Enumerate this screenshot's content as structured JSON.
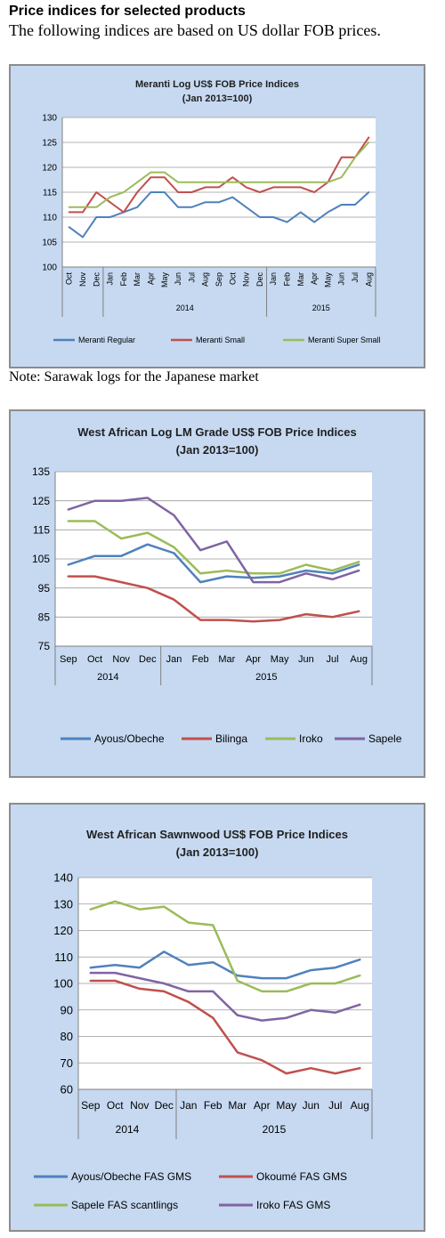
{
  "page": {
    "heading": "Price indices for selected products",
    "subheading": "The following indices are based on US dollar FOB prices.",
    "note": "Note: Sarawak logs for the Japanese market"
  },
  "chart_data": [
    {
      "type": "line",
      "title": "Meranti Log US$ FOB Price Indices",
      "subtitle": "(Jan 2013=100)",
      "categories": [
        "Oct",
        "Nov",
        "Dec",
        "Jan",
        "Feb",
        "Mar",
        "Apr",
        "May",
        "Jun",
        "Jul",
        "Aug",
        "Sep",
        "Oct",
        "Nov",
        "Dec",
        "Jan",
        "Feb",
        "Mar",
        "Apr",
        "May",
        "Jun",
        "Jul",
        "Aug"
      ],
      "year_groups": [
        {
          "label": "",
          "count": 3
        },
        {
          "label": "2014",
          "count": 12
        },
        {
          "label": "2015",
          "count": 8
        }
      ],
      "ylim": [
        100,
        130
      ],
      "yticks": [
        100,
        105,
        110,
        115,
        120,
        125,
        130
      ],
      "grid": true,
      "legend": "bottom",
      "series": [
        {
          "name": "Meranti Regular",
          "color": "#4f81bd",
          "values": [
            108,
            106,
            110,
            110,
            111,
            112,
            115,
            115,
            112,
            112,
            113,
            113,
            114,
            112,
            110,
            110,
            109,
            111,
            109,
            111,
            112.5,
            112.5,
            115
          ]
        },
        {
          "name": "Meranti Small",
          "color": "#c0504d",
          "values": [
            111,
            111,
            115,
            113,
            111,
            115,
            118,
            118,
            115,
            115,
            116,
            116,
            118,
            116,
            115,
            116,
            116,
            116,
            115,
            117,
            122,
            122,
            126
          ]
        },
        {
          "name": "Meranti Super Small",
          "color": "#9bbb59",
          "values": [
            112,
            112,
            112,
            114,
            115,
            117,
            119,
            119,
            117,
            117,
            117,
            117,
            117,
            117,
            117,
            117,
            117,
            117,
            117,
            117,
            118,
            122,
            125
          ]
        }
      ]
    },
    {
      "type": "line",
      "title": "West African Log LM Grade US$ FOB Price Indices",
      "subtitle": "(Jan 2013=100)",
      "categories": [
        "Sep",
        "Oct",
        "Nov",
        "Dec",
        "Jan",
        "Feb",
        "Mar",
        "Apr",
        "May",
        "Jun",
        "Jul",
        "Aug"
      ],
      "year_groups": [
        {
          "label": "2014",
          "count": 4
        },
        {
          "label": "2015",
          "count": 8
        }
      ],
      "ylim": [
        75,
        135
      ],
      "yticks": [
        75,
        85,
        95,
        105,
        115,
        125,
        135
      ],
      "grid": true,
      "legend": "bottom",
      "series": [
        {
          "name": "Ayous/Obeche",
          "color": "#4f81bd",
          "values": [
            103,
            106,
            106,
            110,
            107,
            97,
            99,
            98.5,
            99,
            101,
            100,
            103
          ]
        },
        {
          "name": "Bilinga",
          "color": "#c0504d",
          "values": [
            99,
            99,
            97,
            95,
            91,
            84,
            84,
            83.5,
            84,
            86,
            85,
            87
          ]
        },
        {
          "name": "Iroko",
          "color": "#9bbb59",
          "values": [
            118,
            118,
            112,
            114,
            109,
            100,
            101,
            100,
            100,
            103,
            101,
            104
          ]
        },
        {
          "name": "Sapele",
          "color": "#8064a2",
          "values": [
            122,
            125,
            125,
            126,
            120,
            108,
            111,
            97,
            97,
            100,
            98,
            101
          ]
        }
      ]
    },
    {
      "type": "line",
      "title": "West African Sawnwood US$ FOB Price Indices",
      "subtitle": "(Jan 2013=100)",
      "categories": [
        "Sep",
        "Oct",
        "Nov",
        "Dec",
        "Jan",
        "Feb",
        "Mar",
        "Apr",
        "May",
        "Jun",
        "Jul",
        "Aug"
      ],
      "year_groups": [
        {
          "label": "2014",
          "count": 4
        },
        {
          "label": "2015",
          "count": 8
        }
      ],
      "ylim": [
        60,
        140
      ],
      "yticks": [
        60,
        70,
        80,
        90,
        100,
        110,
        120,
        130,
        140
      ],
      "grid": true,
      "legend": "bottom",
      "series": [
        {
          "name": "Ayous/Obeche FAS GMS",
          "color": "#4f81bd",
          "values": [
            106,
            107,
            106,
            112,
            107,
            108,
            103,
            102,
            102,
            105,
            106,
            109
          ]
        },
        {
          "name": "Okoumé  FAS GMS",
          "color": "#c0504d",
          "values": [
            101,
            101,
            98,
            97,
            93,
            87,
            74,
            71,
            66,
            68,
            66,
            68
          ]
        },
        {
          "name": "Sapele FAS scantlings",
          "color": "#9bbb59",
          "values": [
            128,
            131,
            128,
            129,
            123,
            122,
            101,
            97,
            97,
            100,
            100,
            103
          ]
        },
        {
          "name": "Iroko FAS GMS",
          "color": "#8064a2",
          "values": [
            104,
            104,
            102,
            100,
            97,
            97,
            88,
            86,
            87,
            90,
            89,
            92
          ]
        }
      ]
    }
  ]
}
